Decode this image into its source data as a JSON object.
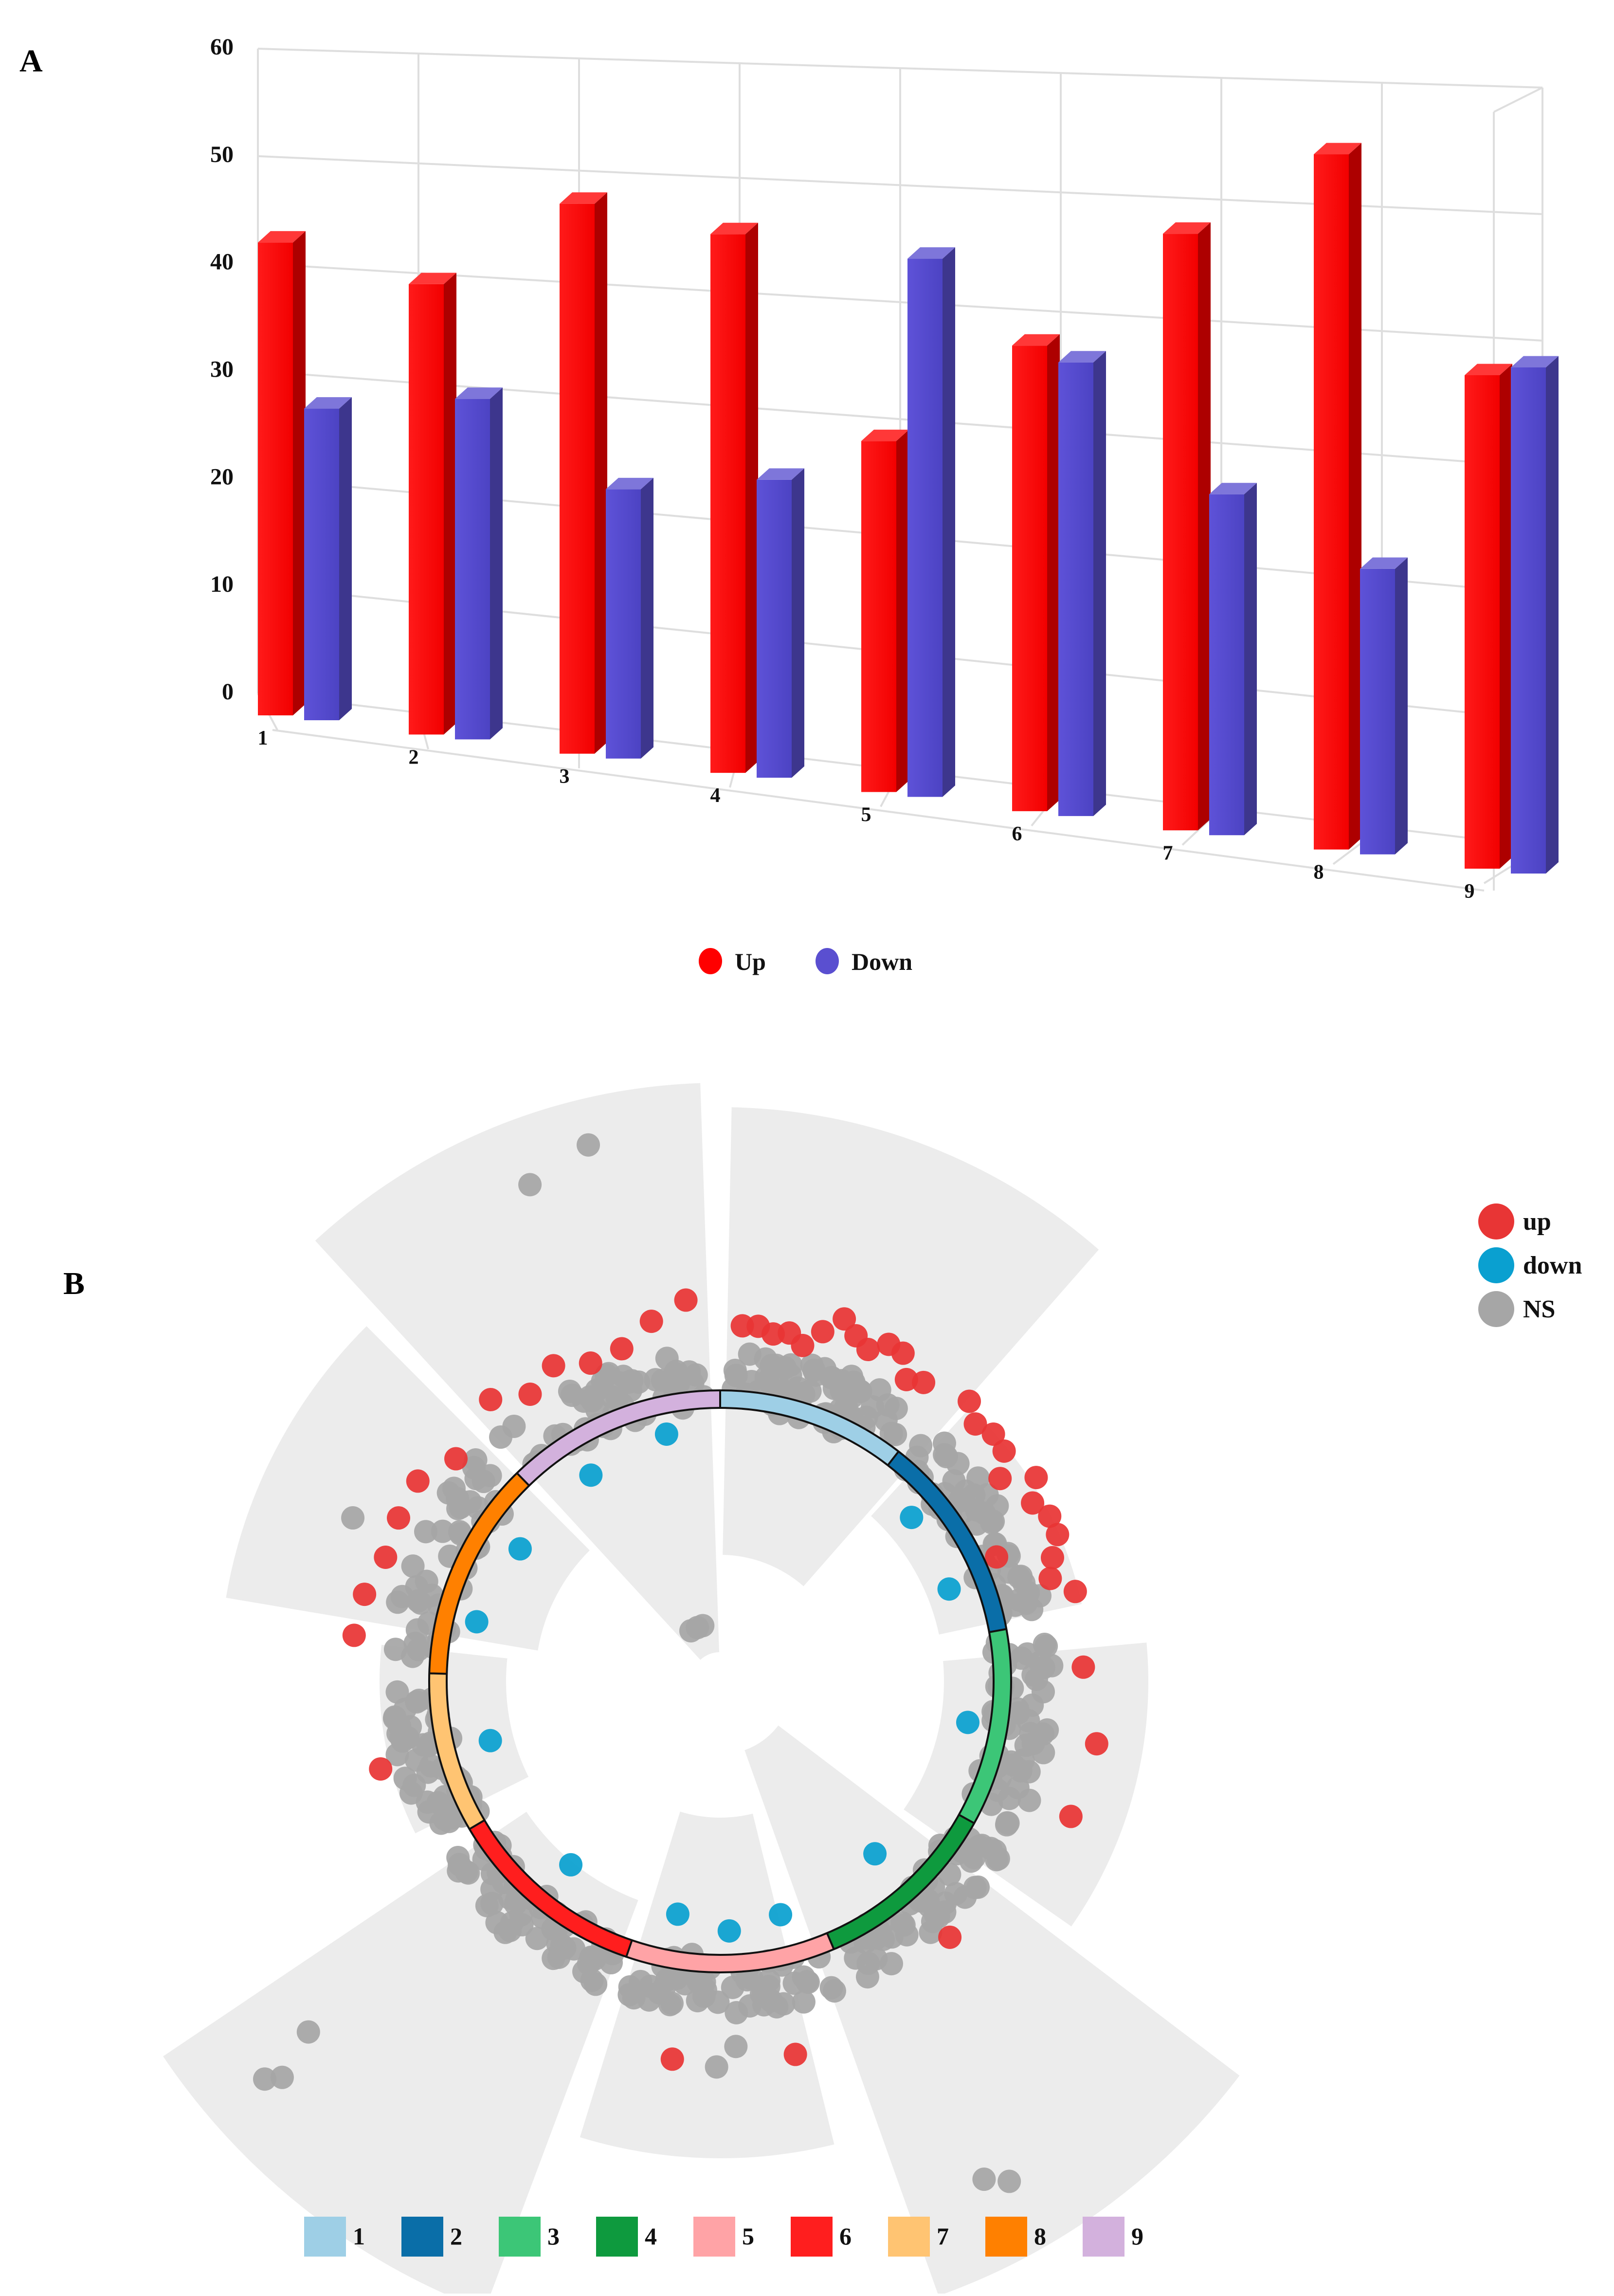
{
  "panel_labels": {
    "a": "A",
    "b": "B"
  },
  "chart_data": [
    {
      "panel": "A",
      "type": "bar",
      "categories": [
        "1",
        "2",
        "3",
        "4",
        "5",
        "6",
        "7",
        "8",
        "9"
      ],
      "series": [
        {
          "name": "Up",
          "color": "#ff0000",
          "values": [
            44,
            41,
            49,
            47,
            30,
            39,
            49,
            56,
            39
          ]
        },
        {
          "name": "Down",
          "color": "#5a4fd0",
          "values": [
            29,
            31,
            24,
            26,
            46,
            38,
            28,
            23,
            40
          ]
        }
      ],
      "yticks": [
        0,
        10,
        20,
        30,
        40,
        50,
        60
      ],
      "ylim": [
        0,
        60
      ],
      "xlabel": "",
      "ylabel": "",
      "title": "",
      "legend": [
        {
          "label": "Up",
          "color": "#ff0000"
        },
        {
          "label": "Down",
          "color": "#5a4fd0"
        }
      ],
      "grid": true
    },
    {
      "panel": "B",
      "type": "scatter",
      "layout": "circular",
      "clusters": [
        "1",
        "2",
        "3",
        "4",
        "5",
        "6",
        "7",
        "8",
        "9"
      ],
      "cluster_colors": [
        "#9ecfe6",
        "#0a6ea8",
        "#3cc677",
        "#0e9a3e",
        "#ffa3a6",
        "#ff1e1e",
        "#ffc472",
        "#ff8000",
        "#d3b1dd"
      ],
      "category_legend": [
        {
          "label": "up",
          "color": "#e83535"
        },
        {
          "label": "down",
          "color": "#0aa0d0"
        },
        {
          "label": "NS",
          "color": "#a6a6a6"
        }
      ],
      "point_colors": {
        "up": "#e83535",
        "down": "#0aa0d0",
        "ns": "#a6a6a6"
      },
      "counts": {
        "up": [
          13,
          12,
          3,
          1,
          2,
          0,
          1,
          6,
          7
        ],
        "down": [
          0,
          2,
          1,
          1,
          3,
          1,
          1,
          2,
          2
        ],
        "ns_dense": [
          70,
          60,
          55,
          55,
          55,
          60,
          50,
          45,
          50
        ]
      },
      "outliers": [
        {
          "cluster": "2",
          "category": "up"
        },
        {
          "cluster": "9",
          "category": "ns"
        },
        {
          "cluster": "9",
          "category": "ns"
        },
        {
          "cluster": "9",
          "category": "ns"
        },
        {
          "cluster": "9",
          "category": "ns"
        },
        {
          "cluster": "9",
          "category": "ns"
        },
        {
          "cluster": "8",
          "category": "ns"
        },
        {
          "cluster": "6",
          "category": "ns"
        },
        {
          "cluster": "6",
          "category": "ns"
        },
        {
          "cluster": "6",
          "category": "ns"
        },
        {
          "cluster": "5",
          "category": "ns"
        },
        {
          "cluster": "5",
          "category": "ns"
        },
        {
          "cluster": "4",
          "category": "ns"
        },
        {
          "cluster": "4",
          "category": "ns"
        }
      ]
    }
  ]
}
